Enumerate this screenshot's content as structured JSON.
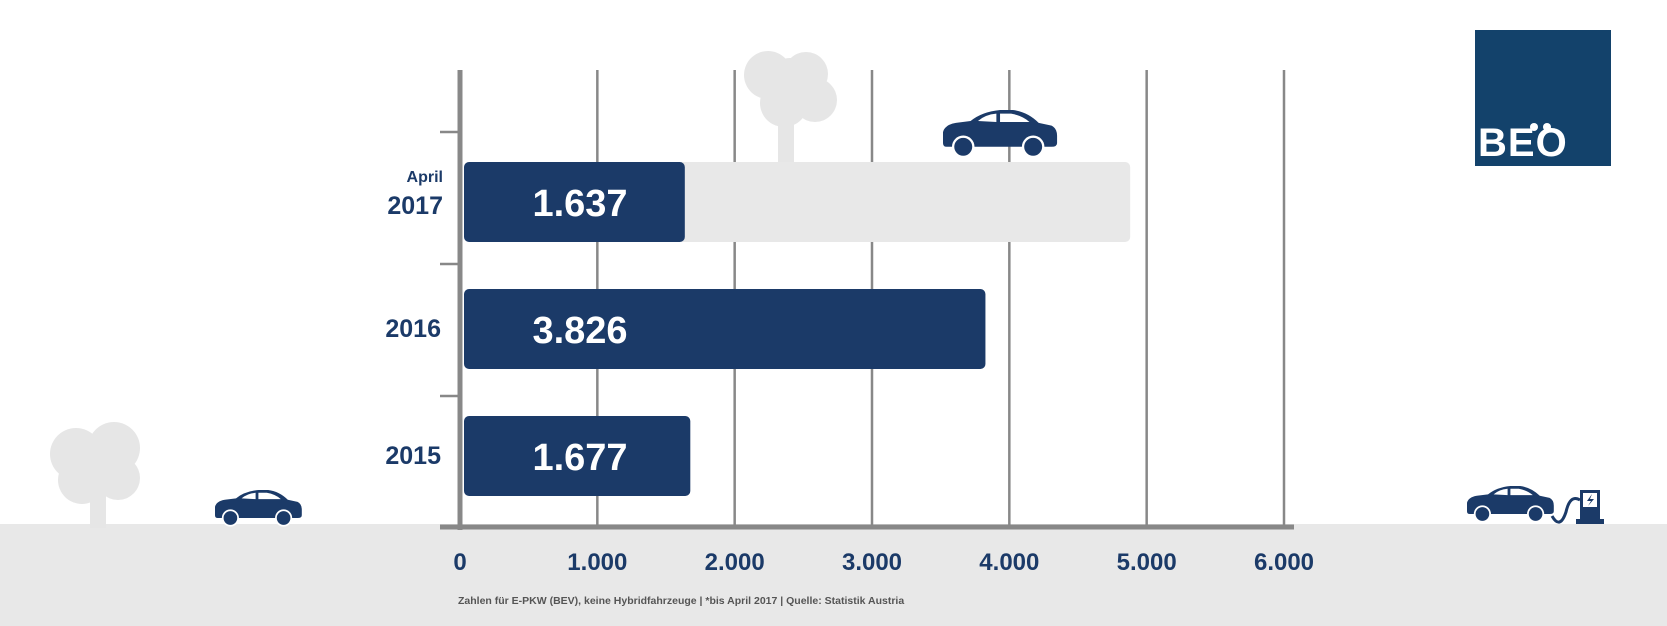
{
  "logo": {
    "text": "BEO"
  },
  "footnote": "Zahlen für E-PKW (BEV), keine Hybridfahrzeuge | *bis April 2017 | Quelle: Statistik Austria",
  "colors": {
    "bar": "#1b3a68",
    "ghost_bar": "#e8e8e8",
    "axis": "#888888",
    "text": "#1b3a68",
    "ground": "#e8e8e8",
    "tree": "#e6e6e6"
  },
  "chart_data": {
    "type": "bar",
    "orientation": "horizontal",
    "categories": [
      {
        "label": "2017",
        "sublabel": "April"
      },
      {
        "label": "2016",
        "sublabel": ""
      },
      {
        "label": "2015",
        "sublabel": ""
      }
    ],
    "values": [
      1637,
      3826,
      1677
    ],
    "value_labels": [
      "1.637",
      "3.826",
      "1.677"
    ],
    "ghost_value": 4880,
    "xlim": [
      0,
      6000
    ],
    "x_ticks": [
      0,
      1000,
      2000,
      3000,
      4000,
      5000,
      6000
    ],
    "x_tick_labels": [
      "0",
      "1.000",
      "2.000",
      "3.000",
      "4.000",
      "5.000",
      "6.000"
    ],
    "grid": true,
    "legend": "none",
    "title": "",
    "xlabel": "",
    "ylabel": ""
  }
}
